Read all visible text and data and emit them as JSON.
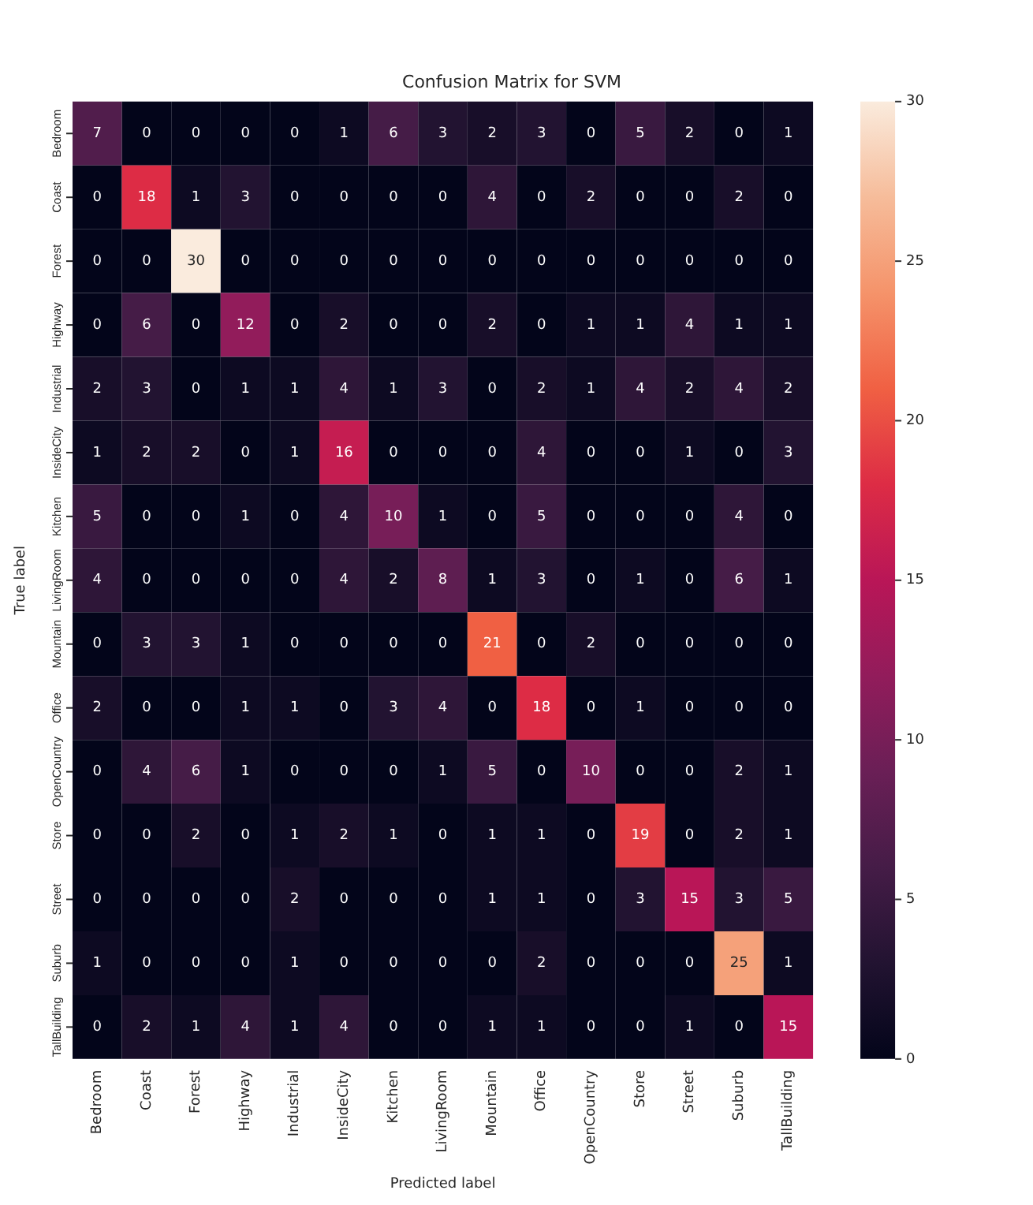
{
  "chart_data": {
    "type": "heatmap",
    "title": "Confusion Matrix for SVM",
    "xlabel": "Predicted label",
    "ylabel": "True label",
    "categories": [
      "Bedroom",
      "Coast",
      "Forest",
      "Highway",
      "Industrial",
      "InsideCity",
      "Kitchen",
      "LivingRoom",
      "Mountain",
      "Office",
      "OpenCountry",
      "Store",
      "Street",
      "Suburb",
      "TallBuilding"
    ],
    "y_categories": [
      "Bedroom",
      "Coast",
      "Forest",
      "Highway",
      "Industrial",
      "InsideCity",
      "Kitchen",
      "LivingRoom",
      "Mountain",
      "Office",
      "OpenCountry",
      "Store",
      "Street",
      "Suburb",
      "TallBuilding"
    ],
    "cells": [
      [
        7,
        0,
        0,
        0,
        0,
        1,
        6,
        3,
        2,
        3,
        0,
        5,
        2,
        0,
        1
      ],
      [
        0,
        18,
        1,
        3,
        0,
        0,
        0,
        0,
        4,
        0,
        2,
        0,
        0,
        2,
        0
      ],
      [
        0,
        0,
        30,
        0,
        0,
        0,
        0,
        0,
        0,
        0,
        0,
        0,
        0,
        0,
        0
      ],
      [
        0,
        6,
        0,
        12,
        0,
        2,
        0,
        0,
        2,
        0,
        1,
        1,
        4,
        1,
        1
      ],
      [
        2,
        3,
        0,
        1,
        1,
        4,
        1,
        3,
        0,
        2,
        1,
        4,
        2,
        4,
        2
      ],
      [
        1,
        2,
        2,
        0,
        1,
        16,
        0,
        0,
        0,
        4,
        0,
        0,
        1,
        0,
        3
      ],
      [
        5,
        0,
        0,
        1,
        0,
        4,
        10,
        1,
        0,
        5,
        0,
        0,
        0,
        4,
        0
      ],
      [
        4,
        0,
        0,
        0,
        0,
        4,
        2,
        8,
        1,
        3,
        0,
        1,
        0,
        6,
        1
      ],
      [
        0,
        3,
        3,
        1,
        0,
        0,
        0,
        0,
        21,
        0,
        2,
        0,
        0,
        0,
        0
      ],
      [
        2,
        0,
        0,
        1,
        1,
        0,
        3,
        4,
        0,
        18,
        0,
        1,
        0,
        0,
        0
      ],
      [
        0,
        4,
        6,
        1,
        0,
        0,
        0,
        1,
        5,
        0,
        10,
        0,
        0,
        2,
        1
      ],
      [
        0,
        0,
        2,
        0,
        1,
        2,
        1,
        0,
        1,
        1,
        0,
        19,
        0,
        2,
        1
      ],
      [
        0,
        0,
        0,
        0,
        2,
        0,
        0,
        0,
        1,
        1,
        0,
        3,
        15,
        3,
        5
      ],
      [
        1,
        0,
        0,
        0,
        1,
        0,
        0,
        0,
        0,
        2,
        0,
        0,
        0,
        25,
        1
      ],
      [
        0,
        2,
        1,
        4,
        1,
        4,
        0,
        0,
        1,
        1,
        0,
        0,
        1,
        0,
        15
      ]
    ],
    "clim": [
      0,
      30
    ],
    "cticks": [
      0,
      5,
      10,
      15,
      20,
      25,
      30
    ],
    "data_labels": true
  }
}
